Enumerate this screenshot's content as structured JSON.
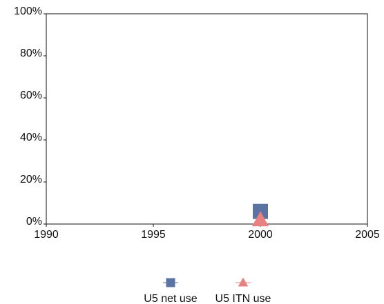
{
  "chart_data": {
    "type": "scatter",
    "x": [
      2000
    ],
    "series": [
      {
        "name": "U5 net use",
        "color": "#5b73a2",
        "marker": "square",
        "values": [
          6
        ]
      },
      {
        "name": "U5 ITN use",
        "color": "#e88080",
        "marker": "triangle",
        "values": [
          2
        ]
      }
    ],
    "xlim": [
      1990,
      2005
    ],
    "xticks": [
      1990,
      1995,
      2000,
      2005
    ],
    "ylim": [
      0,
      100
    ],
    "yticks": [
      {
        "value": 0,
        "label": "0%"
      },
      {
        "value": 20,
        "label": "20%"
      },
      {
        "value": 40,
        "label": "40%"
      },
      {
        "value": 60,
        "label": "60%"
      },
      {
        "value": 80,
        "label": "80%"
      },
      {
        "value": 100,
        "label": "100%"
      }
    ],
    "legend": "bottom"
  }
}
